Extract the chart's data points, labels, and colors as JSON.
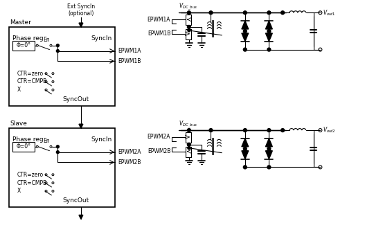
{
  "title": "",
  "bg_color": "#ffffff",
  "line_color": "#000000",
  "box_color": "#000000",
  "text_color": "#000000",
  "master_label": "Master",
  "slave_label": "Slave",
  "phase_reg": "Phase reg",
  "sync_in": "SyncIn",
  "sync_out": "SyncOut",
  "en": "En",
  "phi_label": "Φ=0°",
  "ctr_zero": "CTR=zero",
  "ctr_cmpb": "CTR=CMPB",
  "x_label": "X",
  "ext_syncin": "Ext SyncIn\n(optional)",
  "epwm1a": "EPWM1A",
  "epwm1b": "EPWM1B",
  "epwm2a": "EPWM2A",
  "epwm2b": "EPWM2B"
}
